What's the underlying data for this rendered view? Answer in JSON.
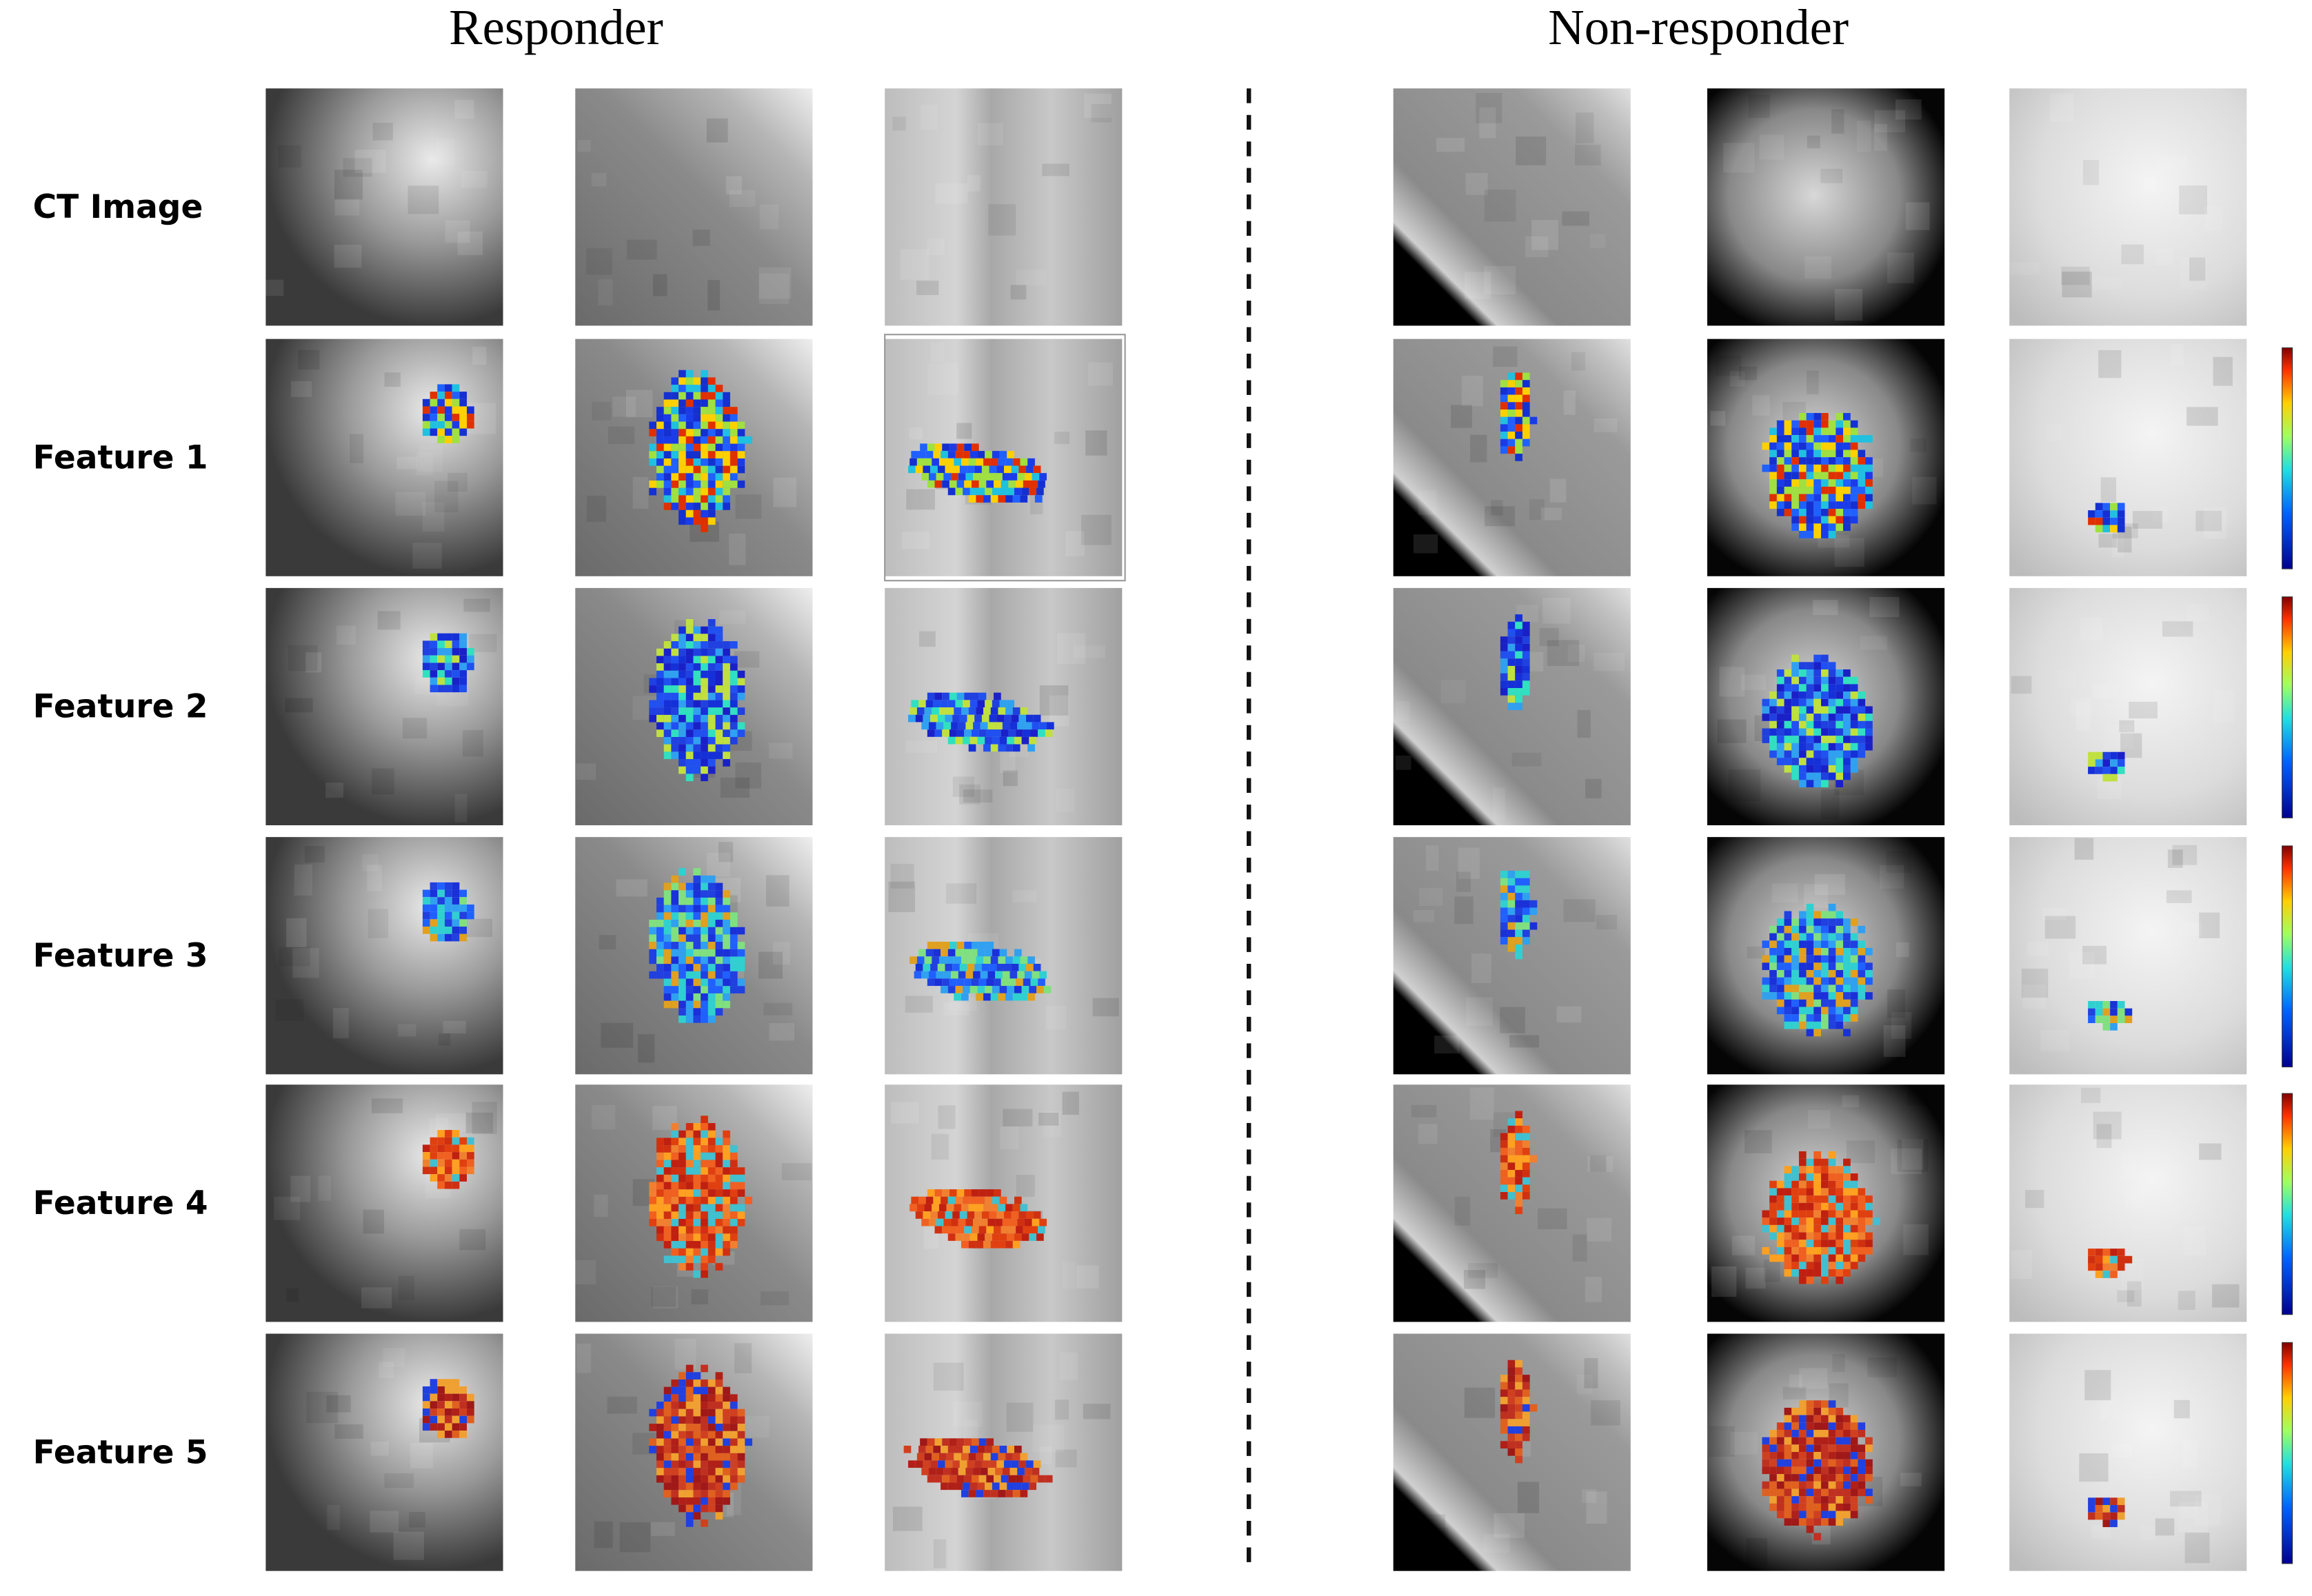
{
  "header": {
    "left_title": "Responder",
    "right_title": "Non-responder"
  },
  "rows": [
    "CT Image",
    "Feature 1",
    "Feature 2",
    "Feature 3",
    "Feature 4",
    "Feature 5"
  ]
}
